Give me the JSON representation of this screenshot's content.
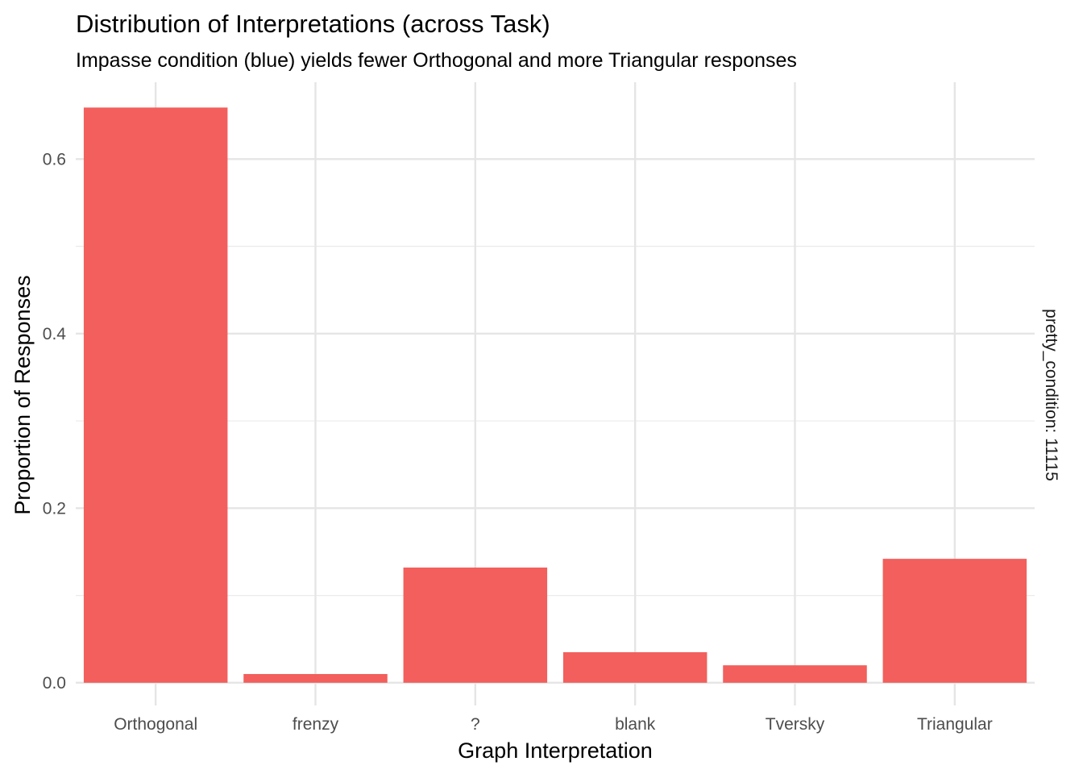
{
  "chart_data": {
    "type": "bar",
    "title": "Distribution of Interpretations (across Task)",
    "subtitle": "Impasse condition (blue) yields fewer Orthogonal and more Triangular responses",
    "xlabel": "Graph Interpretation",
    "ylabel": "Proportion of Responses",
    "facet_label": "pretty_condition: 11115",
    "categories": [
      "Orthogonal",
      "frenzy",
      "?",
      "blank",
      "Tversky",
      "Triangular"
    ],
    "values": [
      0.659,
      0.01,
      0.132,
      0.035,
      0.02,
      0.142
    ],
    "ylim": [
      -0.026,
      0.688
    ],
    "y_ticks": [
      0.0,
      0.2,
      0.4,
      0.6
    ],
    "y_tick_labels": [
      "0.0",
      "0.2",
      "0.4",
      "0.6"
    ],
    "bar_color": "#F25F5C",
    "grid": true,
    "legend": "none"
  }
}
